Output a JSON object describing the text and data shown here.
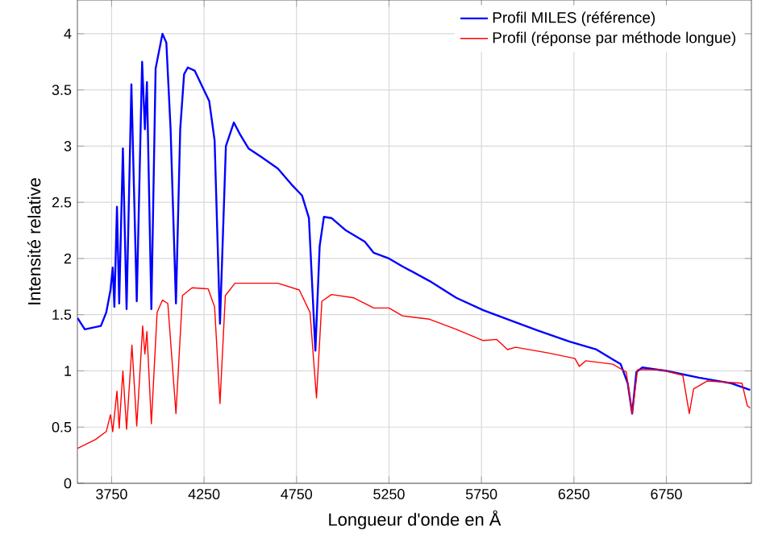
{
  "chart_data": {
    "type": "line",
    "xlabel": "Longueur d'onde en Å",
    "ylabel": "Intensité relative",
    "xlim": [
      3565,
      7210
    ],
    "ylim": [
      0,
      4.3
    ],
    "xticks": [
      3750,
      4250,
      4750,
      5250,
      5750,
      6250,
      6750
    ],
    "yticks": [
      0,
      0.5,
      1,
      1.5,
      2,
      2.5,
      3,
      3.5,
      4
    ],
    "grid": true,
    "legend": "top right",
    "marker": "none",
    "line_style": "solid",
    "series": [
      {
        "name": "Profil MILES (référence)",
        "color": "#0000ff",
        "x": [
          3566,
          3605,
          3692,
          3721,
          3744,
          3756,
          3765,
          3779,
          3791,
          3811,
          3831,
          3857,
          3886,
          3915,
          3930,
          3941,
          3965,
          3988,
          4025,
          4046,
          4069,
          4098,
          4121,
          4142,
          4162,
          4200,
          4243,
          4278,
          4307,
          4336,
          4368,
          4411,
          4446,
          4490,
          4562,
          4649,
          4722,
          4780,
          4817,
          4852,
          4875,
          4898,
          4939,
          5017,
          5119,
          5168,
          5250,
          5323,
          5469,
          5614,
          5760,
          5891,
          6052,
          6227,
          6372,
          6503,
          6541,
          6565,
          6588,
          6620,
          6751,
          6926,
          7101,
          7203
        ],
        "values": [
          1.47,
          1.37,
          1.4,
          1.52,
          1.72,
          1.92,
          1.57,
          2.46,
          1.6,
          2.98,
          1.55,
          3.55,
          1.62,
          3.75,
          3.15,
          3.57,
          1.55,
          3.69,
          4.0,
          3.92,
          3.15,
          1.6,
          3.15,
          3.64,
          3.7,
          3.67,
          3.52,
          3.4,
          3.05,
          1.42,
          3.0,
          3.21,
          3.1,
          2.98,
          2.9,
          2.8,
          2.66,
          2.56,
          2.36,
          1.18,
          2.11,
          2.37,
          2.36,
          2.25,
          2.15,
          2.05,
          2.0,
          1.93,
          1.8,
          1.65,
          1.54,
          1.46,
          1.36,
          1.26,
          1.19,
          1.06,
          0.89,
          0.62,
          0.99,
          1.03,
          1.0,
          0.94,
          0.89,
          0.83
        ]
      },
      {
        "name": "Profil (réponse par méthode longue)",
        "color": "#ff0000",
        "x": [
          3566,
          3663,
          3721,
          3744,
          3756,
          3779,
          3791,
          3811,
          3831,
          3860,
          3886,
          3918,
          3930,
          3941,
          3965,
          3996,
          4025,
          4054,
          4098,
          4133,
          4185,
          4272,
          4307,
          4336,
          4365,
          4417,
          4504,
          4649,
          4765,
          4823,
          4858,
          4887,
          4939,
          5060,
          5168,
          5250,
          5323,
          5469,
          5614,
          5760,
          5833,
          5891,
          5935,
          6110,
          6256,
          6279,
          6314,
          6460,
          6533,
          6565,
          6594,
          6722,
          6839,
          6874,
          6897,
          6970,
          7159,
          7188,
          7203
        ],
        "values": [
          0.31,
          0.39,
          0.46,
          0.61,
          0.46,
          0.82,
          0.49,
          1.0,
          0.48,
          1.23,
          0.51,
          1.4,
          1.15,
          1.35,
          0.53,
          1.52,
          1.63,
          1.6,
          0.62,
          1.67,
          1.74,
          1.73,
          1.57,
          0.71,
          1.67,
          1.78,
          1.78,
          1.78,
          1.72,
          1.52,
          0.76,
          1.62,
          1.68,
          1.65,
          1.56,
          1.56,
          1.49,
          1.46,
          1.37,
          1.27,
          1.28,
          1.19,
          1.21,
          1.16,
          1.11,
          1.04,
          1.09,
          1.06,
          0.99,
          0.62,
          1.01,
          1.01,
          0.96,
          0.62,
          0.84,
          0.91,
          0.89,
          0.69,
          0.67
        ]
      }
    ]
  }
}
